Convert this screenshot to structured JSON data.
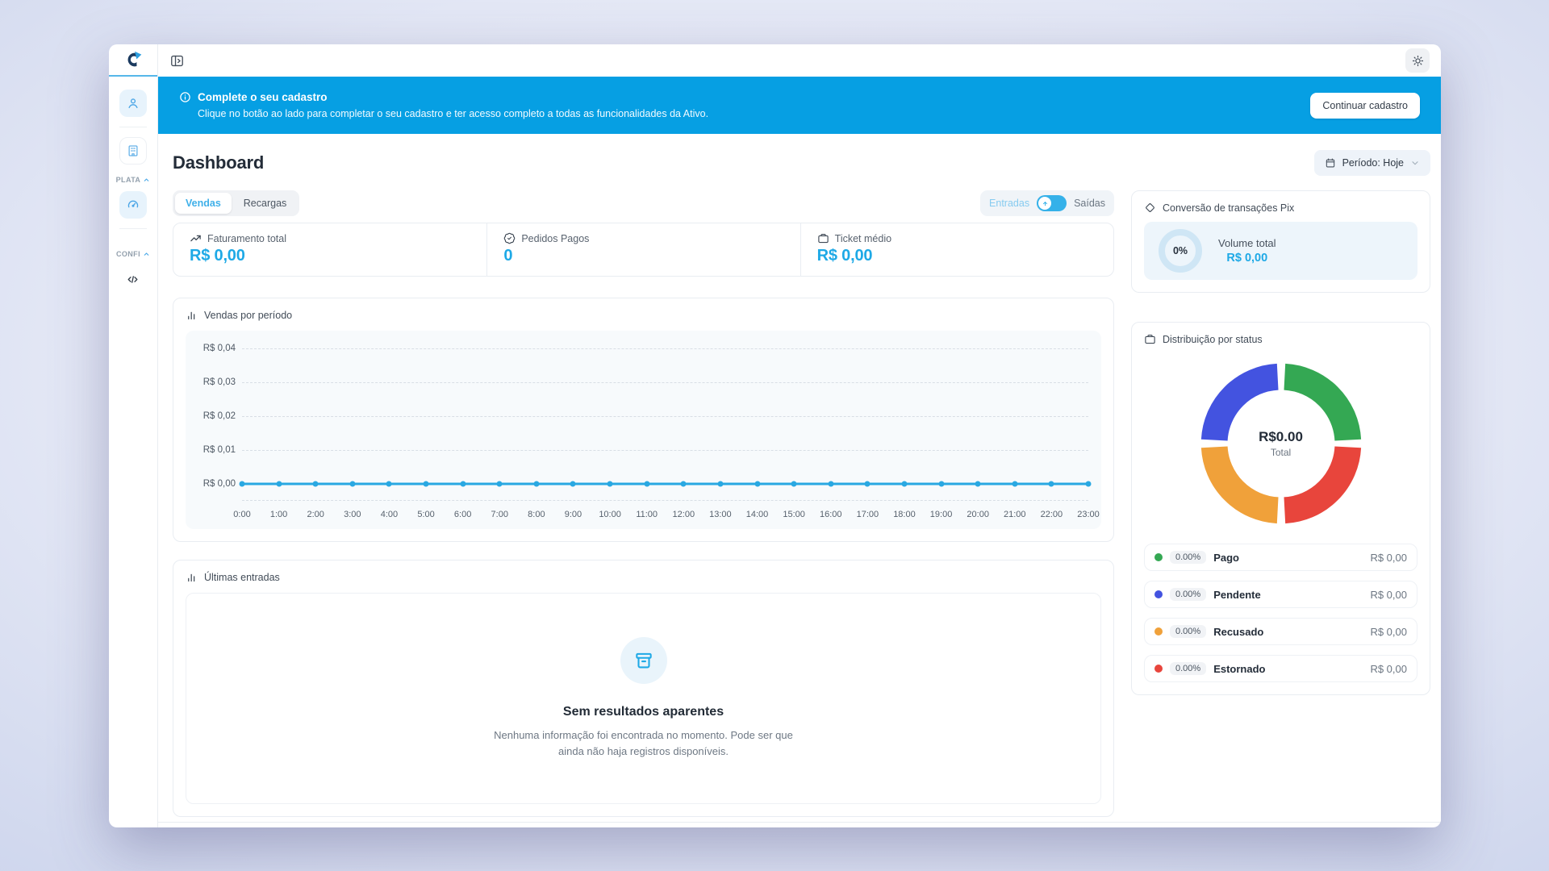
{
  "sidebar": {
    "logo_name": "ativo-logo",
    "items": [
      {
        "icon": "user-icon"
      },
      {
        "icon": "building-icon"
      },
      {
        "icon": "gauge-icon",
        "active": true
      },
      {
        "icon": "code-icon"
      }
    ],
    "sections": [
      {
        "label": "PLATA",
        "chevron": "chevron-up-icon"
      },
      {
        "label": "CONFI",
        "chevron": "chevron-up-icon"
      }
    ]
  },
  "topbar": {
    "collapse_icon": "panel-collapse-icon",
    "theme_icon": "sun-icon"
  },
  "banner": {
    "icon": "info-circle-icon",
    "title": "Complete o seu cadastro",
    "subtitle": "Clique no botão ao lado para completar o seu cadastro e ter acesso completo a todas as funcionalidades da Ativo.",
    "button_label": "Continuar cadastro",
    "background": "#069fe3"
  },
  "header": {
    "title": "Dashboard",
    "period_value": "Período: Hoje",
    "period_icon": "calendar-icon"
  },
  "tabs": {
    "items": [
      "Vendas",
      "Recargas"
    ],
    "active": "Vendas"
  },
  "flow_toggle": {
    "left": "Entradas",
    "right": "Saídas",
    "state": "left",
    "color": "#35b1e9"
  },
  "stats": [
    {
      "id": "faturamento-total",
      "label": "Faturamento total",
      "value": "R$ 0,00",
      "icon": "trending-up-icon"
    },
    {
      "id": "pedidos-pagos",
      "label": "Pedidos Pagos",
      "value": "0",
      "icon": "badge-check-icon"
    },
    {
      "id": "ticket-medio",
      "label": "Ticket médio",
      "value": "R$ 0,00",
      "icon": "wallet-icon"
    }
  ],
  "sales_chart": {
    "title": "Vendas por período",
    "icon": "bar-chart-icon"
  },
  "latest_entries": {
    "title": "Últimas entradas",
    "icon": "bar-chart-icon",
    "empty_icon": "archive-box-icon",
    "empty_title": "Sem resultados aparentes",
    "empty_description": "Nenhuma informação foi encontrada no momento. Pode ser que ainda não haja registros disponíveis."
  },
  "pix_card": {
    "title": "Conversão de transações Pix",
    "icon": "pix-diamond-icon",
    "percent": "0%",
    "volume_label": "Volume total",
    "volume_value": "R$ 0,00",
    "ring_color": "#cfe6f5"
  },
  "status_card": {
    "title": "Distribuição por status",
    "icon": "wallet-icon",
    "center_value": "R$0.00",
    "center_label": "Total"
  },
  "chart_data": [
    {
      "type": "line",
      "title": "Vendas por período",
      "x": [
        "0:00",
        "1:00",
        "2:00",
        "3:00",
        "4:00",
        "5:00",
        "6:00",
        "7:00",
        "8:00",
        "9:00",
        "10:00",
        "11:00",
        "12:00",
        "13:00",
        "14:00",
        "15:00",
        "16:00",
        "17:00",
        "18:00",
        "19:00",
        "20:00",
        "21:00",
        "22:00",
        "23:00"
      ],
      "values": [
        0,
        0,
        0,
        0,
        0,
        0,
        0,
        0,
        0,
        0,
        0,
        0,
        0,
        0,
        0,
        0,
        0,
        0,
        0,
        0,
        0,
        0,
        0,
        0
      ],
      "y_ticks": [
        "R$ 0,04",
        "R$ 0,03",
        "R$ 0,02",
        "R$ 0,01",
        "R$ 0,00"
      ],
      "ylim": [
        0,
        0.04
      ],
      "grid": "horizontal-dashed",
      "line_color": "#29a8e2"
    },
    {
      "type": "pie",
      "title": "Distribuição por status",
      "center_value": "R$0.00",
      "center_label": "Total",
      "slices": [
        {
          "id": "pago",
          "label": "Pago",
          "percent": "0.00%",
          "value": "R$ 0,00",
          "color": "#34a853",
          "visual_fraction": 0.25
        },
        {
          "id": "pendente",
          "label": "Pendente",
          "percent": "0.00%",
          "value": "R$ 0,00",
          "color": "#4353e0",
          "visual_fraction": 0.25
        },
        {
          "id": "recusado",
          "label": "Recusado",
          "percent": "0.00%",
          "value": "R$ 0,00",
          "color": "#f0a13a",
          "visual_fraction": 0.25
        },
        {
          "id": "estornado",
          "label": "Estornado",
          "percent": "0.00%",
          "value": "R$ 0,00",
          "color": "#e8453c",
          "visual_fraction": 0.25
        }
      ],
      "legend_position": "below"
    },
    {
      "type": "pie",
      "title": "Conversão de transações Pix",
      "percent_label": "0%",
      "value": 0,
      "ring_color": "#cfe6f5"
    }
  ]
}
